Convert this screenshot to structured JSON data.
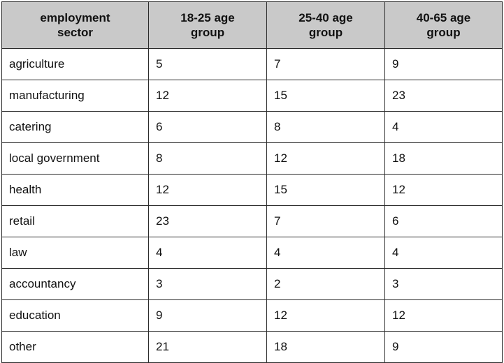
{
  "chart_data": {
    "type": "table",
    "columns": [
      "employment sector",
      "18-25 age group",
      "25-40 age group",
      "40-65 age group"
    ],
    "header_lines": [
      [
        "employment",
        "sector"
      ],
      [
        "18-25 age",
        "group"
      ],
      [
        "25-40 age",
        "group"
      ],
      [
        "40-65 age",
        "group"
      ]
    ],
    "rows": [
      [
        "agriculture",
        "5",
        "7",
        "9"
      ],
      [
        "manufacturing",
        "12",
        "15",
        "23"
      ],
      [
        "catering",
        "6",
        "8",
        "4"
      ],
      [
        "local government",
        "8",
        "12",
        "18"
      ],
      [
        "health",
        "12",
        "15",
        "12"
      ],
      [
        "retail",
        "23",
        "7",
        "6"
      ],
      [
        "law",
        "4",
        "4",
        "4"
      ],
      [
        "accountancy",
        "3",
        "2",
        "3"
      ],
      [
        "education",
        "9",
        "12",
        "12"
      ],
      [
        "other",
        "21",
        "18",
        "9"
      ]
    ],
    "colors": {
      "header_background": "#c9c9c9",
      "border": "#2a2a2a",
      "cell_background": "#ffffff"
    }
  }
}
